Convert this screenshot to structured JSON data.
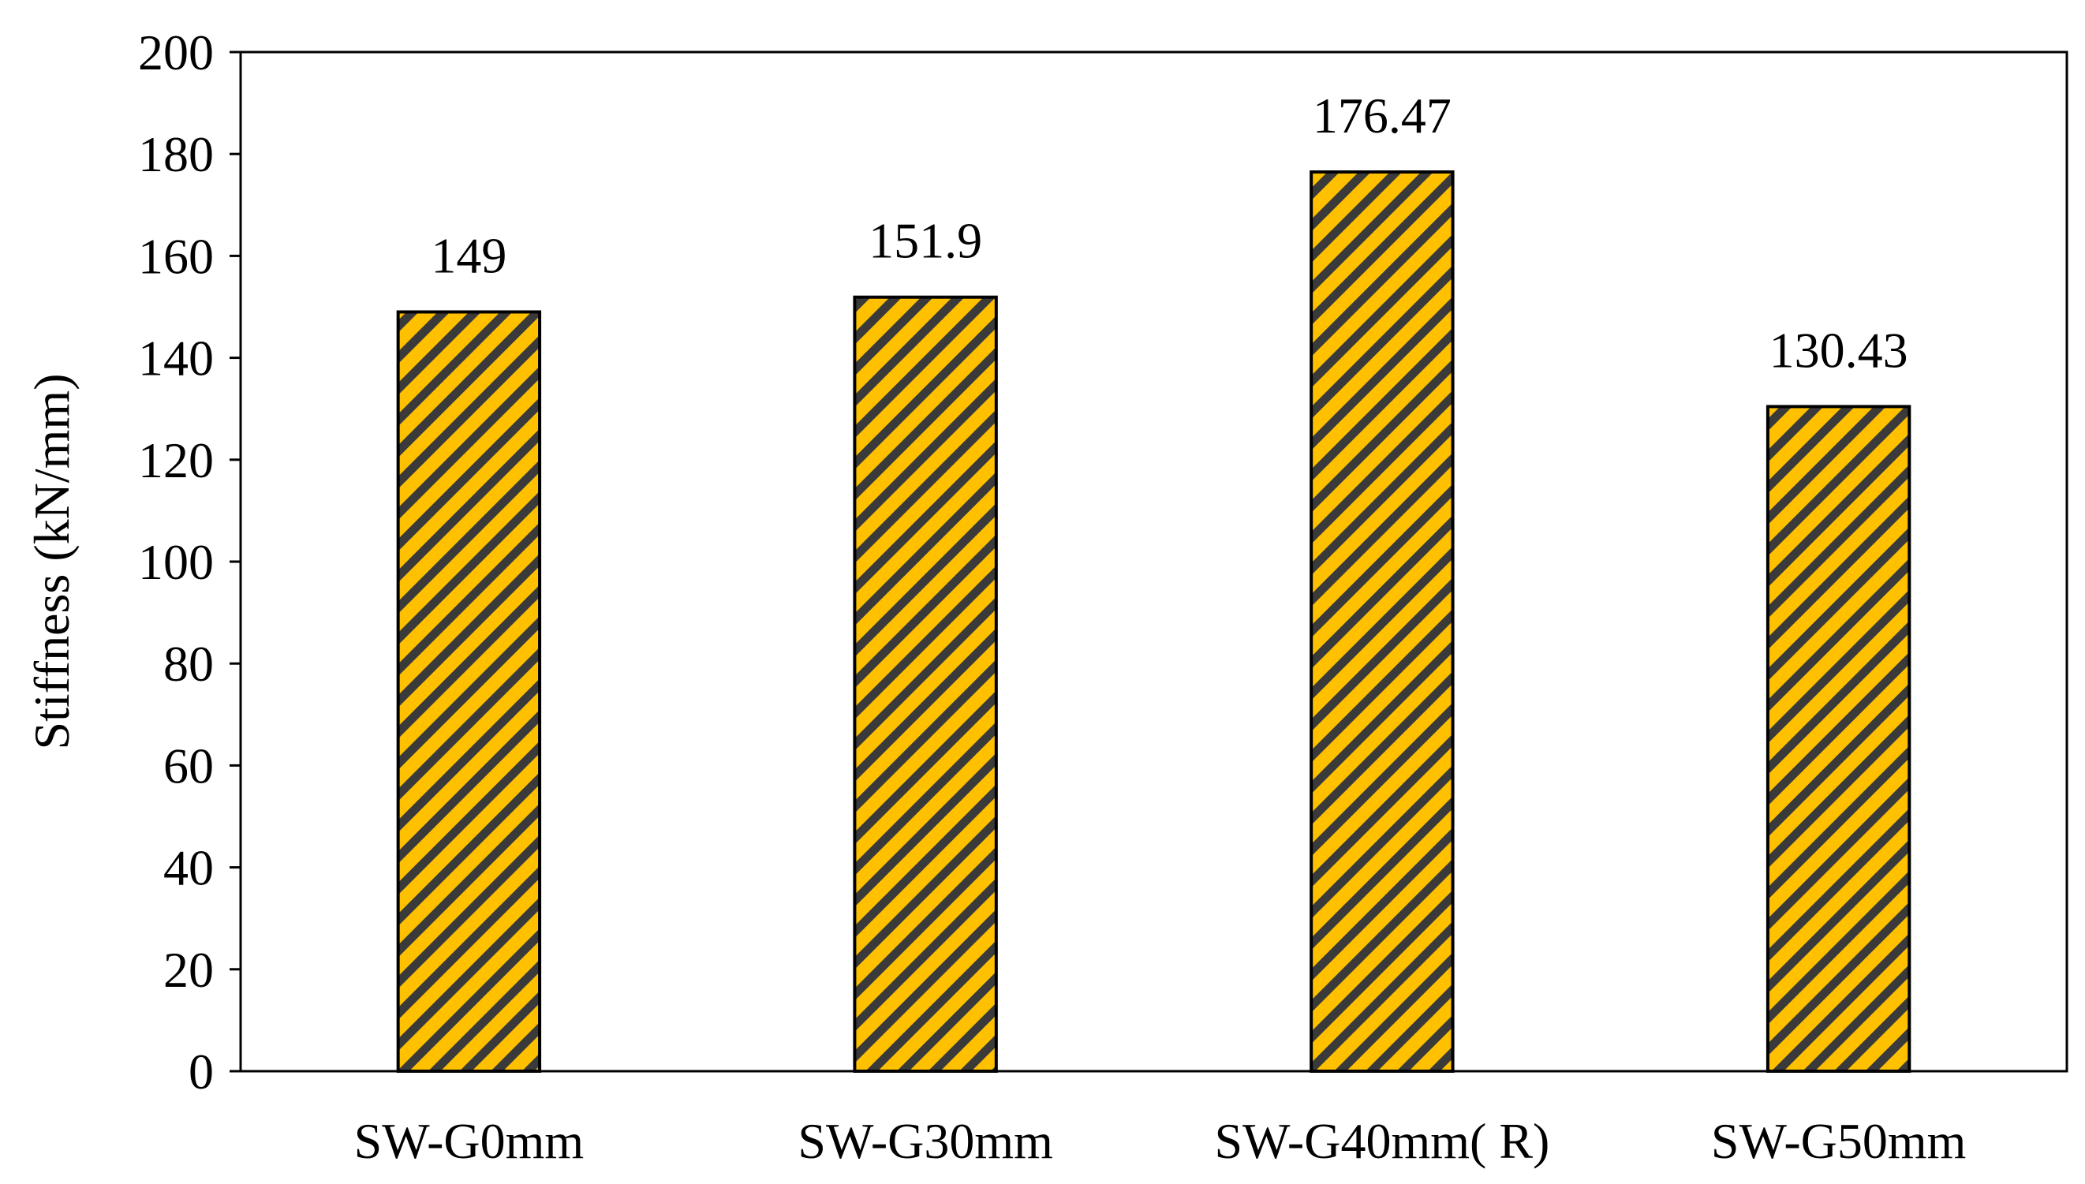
{
  "chart_data": {
    "type": "bar",
    "categories": [
      "SW-G0mm",
      "SW-G30mm",
      "SW-G40mm( R)",
      "SW-G50mm"
    ],
    "values": [
      149,
      151.9,
      176.47,
      130.43
    ],
    "data_labels": [
      "149",
      "151.9",
      "176.47",
      "130.43"
    ],
    "title": "",
    "xlabel": "",
    "ylabel": "Stiffness (kN/mm)",
    "ylim": [
      0,
      200
    ],
    "yticks": [
      0,
      20,
      40,
      60,
      80,
      100,
      120,
      140,
      160,
      180,
      200
    ],
    "grid": false,
    "legend": "none",
    "bar_fill_color": "#FFC000",
    "bar_hatch_color": "#3A3A3A",
    "bar_edge_color": "#000000"
  }
}
